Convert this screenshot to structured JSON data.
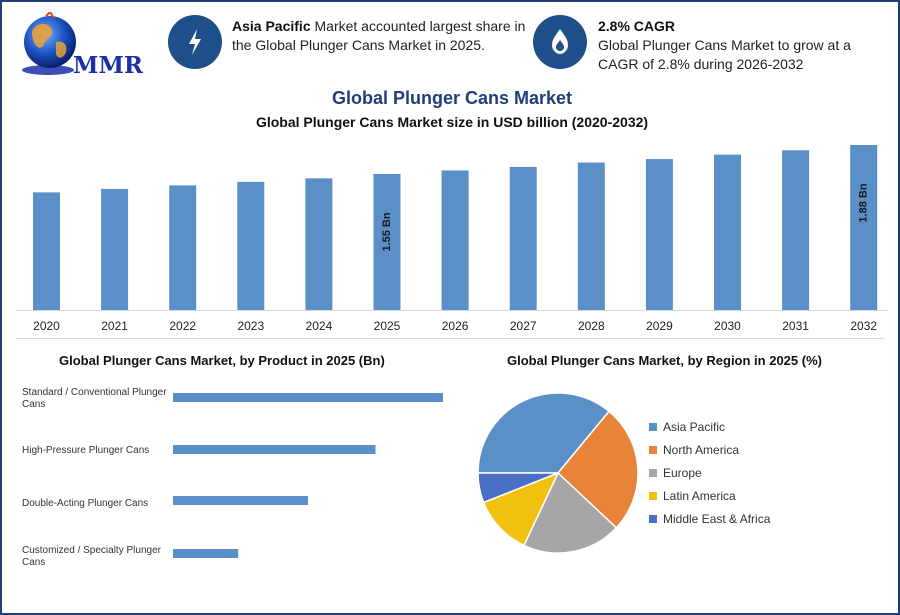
{
  "logo": {
    "text": "MMR"
  },
  "info_left": {
    "icon": "lightning-icon",
    "bold": "Asia Pacific",
    "rest": " Market accounted largest share in the Global Plunger Cans Market in 2025."
  },
  "info_right": {
    "icon": "flame-drop-icon",
    "bold": "2.8% CAGR",
    "rest": "Global Plunger Cans Market to grow at a CAGR of 2.8% during 2026-2032"
  },
  "colors": {
    "bar": "#5b8fc8",
    "accent": "#1f4f8a",
    "title": "#1f3e7a",
    "pie": [
      "#5b8fc8",
      "#e8843a",
      "#a6a6a6",
      "#f0c10f",
      "#4a6fc4"
    ]
  },
  "chart_data": [
    {
      "type": "bar",
      "title": "Global Plunger Cans Market",
      "subtitle": "Global Plunger Cans Market size in USD billion (2020-2032)",
      "categories": [
        "2020",
        "2021",
        "2022",
        "2023",
        "2024",
        "2025",
        "2026",
        "2027",
        "2028",
        "2029",
        "2030",
        "2031",
        "2032"
      ],
      "values": [
        1.34,
        1.38,
        1.42,
        1.46,
        1.5,
        1.55,
        1.59,
        1.63,
        1.68,
        1.72,
        1.77,
        1.82,
        1.88
      ],
      "data_labels": {
        "2025": "1.55 Bn",
        "2032": "1.88 Bn"
      },
      "ylim": [
        0,
        1.88
      ]
    },
    {
      "type": "bar",
      "orientation": "horizontal",
      "title": "Global Plunger Cans Market, by Product in 2025 (Bn)",
      "categories": [
        "Standard / Conventional Plunger Cans",
        "High-Pressure Plunger Cans",
        "Double-Acting Plunger Cans",
        "Customized / Specialty Plunger Cans"
      ],
      "values": [
        0.6,
        0.45,
        0.3,
        0.145
      ]
    },
    {
      "type": "pie",
      "title": "Global Plunger Cans Market, by Region in 2025 (%)",
      "categories": [
        "Asia Pacific",
        "North America",
        "Europe",
        "Latin America",
        "Middle East & Africa"
      ],
      "values": [
        36,
        26,
        20,
        12,
        6
      ]
    }
  ]
}
